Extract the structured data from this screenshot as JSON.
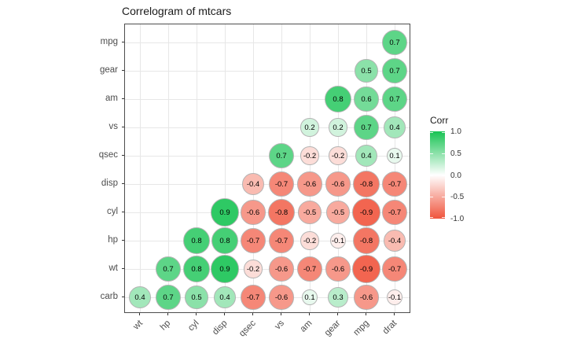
{
  "title": "Correlogram of mtcars",
  "legend": {
    "title": "Corr",
    "ticks": [
      {
        "label": "1.0",
        "value": 1.0
      },
      {
        "label": "0.5",
        "value": 0.5
      },
      {
        "label": "0.0",
        "value": 0.0
      },
      {
        "label": "-0.5",
        "value": -0.5
      },
      {
        "label": "-1.0",
        "value": -1.0
      }
    ]
  },
  "colors": {
    "high": "#17c353",
    "mid": "#ffffff",
    "low": "#f0543c",
    "grid": "#e7e7e7",
    "panel_border": "#4d4d4d",
    "circle_stroke": "#b3b3b3",
    "axis_text": "#4d4d4d",
    "tick_mark": "#333333"
  },
  "chart_data": {
    "type": "heatmap",
    "subtype": "correlogram-circles",
    "title": "Correlogram of mtcars",
    "legend_title": "Corr",
    "grid": true,
    "value_range": [
      -1,
      1
    ],
    "colorscale": {
      "low": "#f0543c",
      "mid": "#ffffff",
      "high": "#17c353",
      "domain": [
        -1,
        0,
        1
      ]
    },
    "x_categories": [
      "wt",
      "hp",
      "cyl",
      "disp",
      "qsec",
      "vs",
      "am",
      "gear",
      "mpg",
      "drat"
    ],
    "y_categories": [
      "mpg",
      "gear",
      "am",
      "vs",
      "qsec",
      "disp",
      "cyl",
      "hp",
      "wt",
      "carb"
    ],
    "series": [
      {
        "name": "mpg",
        "values": [
          null,
          null,
          null,
          null,
          null,
          null,
          null,
          null,
          null,
          0.7
        ]
      },
      {
        "name": "gear",
        "values": [
          null,
          null,
          null,
          null,
          null,
          null,
          null,
          null,
          0.5,
          0.7
        ]
      },
      {
        "name": "am",
        "values": [
          null,
          null,
          null,
          null,
          null,
          null,
          null,
          0.8,
          0.6,
          0.7
        ]
      },
      {
        "name": "vs",
        "values": [
          null,
          null,
          null,
          null,
          null,
          null,
          0.2,
          0.2,
          0.7,
          0.4
        ]
      },
      {
        "name": "qsec",
        "values": [
          null,
          null,
          null,
          null,
          null,
          0.7,
          -0.2,
          -0.2,
          0.4,
          0.1
        ]
      },
      {
        "name": "disp",
        "values": [
          null,
          null,
          null,
          null,
          -0.4,
          -0.7,
          -0.6,
          -0.6,
          -0.8,
          -0.7
        ]
      },
      {
        "name": "cyl",
        "values": [
          null,
          null,
          null,
          0.9,
          -0.6,
          -0.8,
          -0.5,
          -0.5,
          -0.9,
          -0.7
        ]
      },
      {
        "name": "hp",
        "values": [
          null,
          null,
          0.8,
          0.8,
          -0.7,
          -0.7,
          -0.2,
          -0.1,
          -0.8,
          -0.4
        ]
      },
      {
        "name": "wt",
        "values": [
          null,
          0.7,
          0.8,
          0.9,
          -0.2,
          -0.6,
          -0.7,
          -0.6,
          -0.9,
          -0.7
        ]
      },
      {
        "name": "carb",
        "values": [
          0.4,
          0.7,
          0.5,
          0.4,
          -0.7,
          -0.6,
          0.1,
          0.3,
          -0.6,
          -0.1
        ]
      }
    ]
  }
}
